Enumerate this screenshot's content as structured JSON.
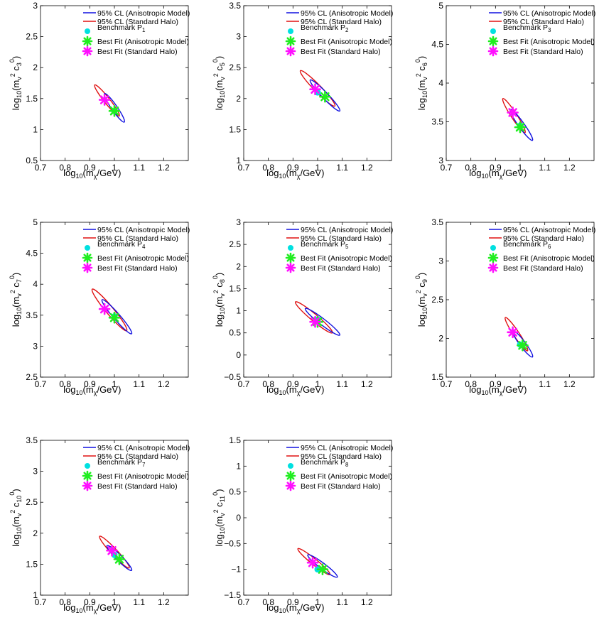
{
  "legend_labels": {
    "aniso_cl": "95% CL (Anisotropic Model)",
    "std_cl": "95% CL (Standard Halo)",
    "best_aniso": "Best Fit (Anisotropic Model)",
    "best_std": "Best Fit (Standard Halo)"
  },
  "colors": {
    "aniso": "#1010e0",
    "standard": "#e01010",
    "benchmark": "#00e0e0",
    "best_aniso": "#20ee20",
    "best_std": "#ff10ff"
  },
  "chart_data": [
    {
      "type": "scatter",
      "benchmark_sub": "1",
      "xlabel": {
        "main": "log",
        "sub1": "10",
        "mid": "(m",
        "sub2": "χ",
        "end": "/GeV)"
      },
      "ylabel": {
        "main": "log",
        "sub1": "10",
        "mid": "(m",
        "sub2": "v",
        "sup2": "2",
        "c": " c",
        "csub": "3",
        "csup": "0",
        "end": ")"
      },
      "xlim": [
        0.7,
        1.3
      ],
      "ylim": [
        0.5,
        3
      ],
      "xticks": [
        "0.7",
        "0.8",
        "0.9",
        "1",
        "1.1",
        "1.2"
      ],
      "yticks": [
        "0.5",
        "1",
        "1.5",
        "2",
        "2.5",
        "3"
      ],
      "benchmark": [
        1.0,
        1.3
      ],
      "best_fit_aniso": [
        1.0,
        1.3
      ],
      "best_fit_standard": [
        0.96,
        1.48
      ],
      "ellipse_aniso": {
        "x": [
          0.96,
          1.04
        ],
        "y": [
          1.12,
          1.58
        ]
      },
      "ellipse_standard": {
        "x": [
          0.92,
          1.02
        ],
        "y": [
          1.22,
          1.72
        ]
      }
    },
    {
      "type": "scatter",
      "benchmark_sub": "2",
      "xlabel": {
        "main": "log",
        "sub1": "10",
        "mid": "(m",
        "sub2": "χ",
        "end": "/GeV)"
      },
      "ylabel": {
        "main": "log",
        "sub1": "10",
        "mid": "(m",
        "sub2": "v",
        "sup2": "2",
        "c": " c",
        "csub": "5",
        "csup": "0",
        "end": ")"
      },
      "xlim": [
        0.7,
        1.3
      ],
      "ylim": [
        1,
        3.5
      ],
      "xticks": [
        "0.7",
        "0.8",
        "0.9",
        "1",
        "1.1",
        "1.2"
      ],
      "yticks": [
        "1",
        "1.5",
        "2",
        "2.5",
        "3",
        "3.5"
      ],
      "benchmark": [
        1.0,
        2.1
      ],
      "best_fit_aniso": [
        1.03,
        2.03
      ],
      "best_fit_standard": [
        0.99,
        2.15
      ],
      "ellipse_aniso": {
        "x": [
          0.97,
          1.09
        ],
        "y": [
          1.8,
          2.3
        ]
      },
      "ellipse_standard": {
        "x": [
          0.93,
          1.07
        ],
        "y": [
          1.88,
          2.45
        ]
      }
    },
    {
      "type": "scatter",
      "benchmark_sub": "3",
      "xlabel": {
        "main": "log",
        "sub1": "10",
        "mid": "(m",
        "sub2": "χ",
        "end": "/GeV)"
      },
      "ylabel": {
        "main": "log",
        "sub1": "10",
        "mid": "(m",
        "sub2": "v",
        "sup2": "2",
        "c": " c",
        "csub": "6",
        "csup": "0",
        "end": ")"
      },
      "xlim": [
        0.7,
        1.3
      ],
      "ylim": [
        3,
        5
      ],
      "xticks": [
        "0.7",
        "0.8",
        "0.9",
        "1",
        "1.1",
        "1.2"
      ],
      "yticks": [
        "3",
        "3.5",
        "4",
        "4.5",
        "5"
      ],
      "benchmark": [
        1.0,
        3.45
      ],
      "best_fit_aniso": [
        1.0,
        3.43
      ],
      "best_fit_standard": [
        0.97,
        3.62
      ],
      "ellipse_aniso": {
        "x": [
          0.96,
          1.05
        ],
        "y": [
          3.26,
          3.66
        ]
      },
      "ellipse_standard": {
        "x": [
          0.93,
          1.02
        ],
        "y": [
          3.36,
          3.8
        ]
      }
    },
    {
      "type": "scatter",
      "benchmark_sub": "4",
      "xlabel": {
        "main": "log",
        "sub1": "10",
        "mid": "(m",
        "sub2": "χ",
        "end": "/GeV)"
      },
      "ylabel": {
        "main": "log",
        "sub1": "10",
        "mid": "(m",
        "sub2": "v",
        "sup2": "2",
        "c": " c",
        "csub": "7",
        "csup": "0",
        "end": ")"
      },
      "xlim": [
        0.7,
        1.3
      ],
      "ylim": [
        2.5,
        5
      ],
      "xticks": [
        "0.7",
        "0.8",
        "0.9",
        "1",
        "1.1",
        "1.2"
      ],
      "yticks": [
        "2.5",
        "3",
        "3.5",
        "4",
        "4.5",
        "5"
      ],
      "benchmark": [
        1.0,
        3.48
      ],
      "best_fit_aniso": [
        1.0,
        3.46
      ],
      "best_fit_standard": [
        0.96,
        3.6
      ],
      "ellipse_aniso": {
        "x": [
          0.95,
          1.07
        ],
        "y": [
          3.2,
          3.75
        ]
      },
      "ellipse_standard": {
        "x": [
          0.91,
          1.05
        ],
        "y": [
          3.25,
          3.92
        ]
      }
    },
    {
      "type": "scatter",
      "benchmark_sub": "5",
      "xlabel": {
        "main": "log",
        "sub1": "10",
        "mid": "(m",
        "sub2": "χ",
        "end": "/GeV)"
      },
      "ylabel": {
        "main": "log",
        "sub1": "10",
        "mid": "(m",
        "sub2": "v",
        "sup2": "2",
        "c": " c",
        "csub": "8",
        "csup": "0",
        "end": ")"
      },
      "xlim": [
        0.7,
        1.3
      ],
      "ylim": [
        -0.5,
        3
      ],
      "xticks": [
        "0.7",
        "0.8",
        "0.9",
        "1",
        "1.1",
        "1.2"
      ],
      "yticks": [
        "−0.5",
        "0",
        "0.5",
        "1",
        "1.5",
        "2",
        "2.5",
        "3"
      ],
      "benchmark": [
        1.0,
        0.8
      ],
      "best_fit_aniso": [
        1.0,
        0.75
      ],
      "best_fit_standard": [
        0.99,
        0.75
      ],
      "ellipse_aniso": {
        "x": [
          0.95,
          1.09
        ],
        "y": [
          0.45,
          1.05
        ]
      },
      "ellipse_standard": {
        "x": [
          0.91,
          1.06
        ],
        "y": [
          0.5,
          1.2
        ]
      }
    },
    {
      "type": "scatter",
      "benchmark_sub": "6",
      "xlabel": {
        "main": "log",
        "sub1": "10",
        "mid": "(m",
        "sub2": "χ",
        "end": "/GeV)"
      },
      "ylabel": {
        "main": "log",
        "sub1": "10",
        "mid": "(m",
        "sub2": "v",
        "sup2": "2",
        "c": " c",
        "csub": "9",
        "csup": "0",
        "end": ")"
      },
      "xlim": [
        0.7,
        1.3
      ],
      "ylim": [
        1.5,
        3.5
      ],
      "xticks": [
        "0.7",
        "0.8",
        "0.9",
        "1",
        "1.1",
        "1.2"
      ],
      "yticks": [
        "1.5",
        "2",
        "2.5",
        "3",
        "3.5"
      ],
      "benchmark": [
        1.0,
        1.92
      ],
      "best_fit_aniso": [
        1.01,
        1.91
      ],
      "best_fit_standard": [
        0.97,
        2.08
      ],
      "ellipse_aniso": {
        "x": [
          0.97,
          1.05
        ],
        "y": [
          1.76,
          2.1
        ]
      },
      "ellipse_standard": {
        "x": [
          0.94,
          1.03
        ],
        "y": [
          1.84,
          2.27
        ]
      }
    },
    {
      "type": "scatter",
      "benchmark_sub": "7",
      "xlabel": {
        "main": "log",
        "sub1": "10",
        "mid": "(m",
        "sub2": "χ",
        "end": "/GeV)"
      },
      "ylabel": {
        "main": "log",
        "sub1": "10",
        "mid": "(m",
        "sub2": "v",
        "sup2": "2",
        "c": " c",
        "csub": "10",
        "csup": "0",
        "end": ")"
      },
      "xlim": [
        0.7,
        1.3
      ],
      "ylim": [
        1,
        3.5
      ],
      "xticks": [
        "0.7",
        "0.8",
        "0.9",
        "1",
        "1.1",
        "1.2"
      ],
      "yticks": [
        "1",
        "1.5",
        "2",
        "2.5",
        "3",
        "3.5"
      ],
      "benchmark": [
        1.0,
        1.65
      ],
      "best_fit_aniso": [
        1.02,
        1.58
      ],
      "best_fit_standard": [
        0.99,
        1.72
      ],
      "ellipse_aniso": {
        "x": [
          0.97,
          1.07
        ],
        "y": [
          1.4,
          1.8
        ]
      },
      "ellipse_standard": {
        "x": [
          0.94,
          1.06
        ],
        "y": [
          1.44,
          1.95
        ]
      }
    },
    {
      "type": "scatter",
      "benchmark_sub": "8",
      "xlabel": {
        "main": "log",
        "sub1": "10",
        "mid": "(m",
        "sub2": "χ",
        "end": "/GeV)"
      },
      "ylabel": {
        "main": "log",
        "sub1": "10",
        "mid": "(m",
        "sub2": "v",
        "sup2": "2",
        "c": " c",
        "csub": "11",
        "csup": "0",
        "end": ")"
      },
      "xlim": [
        0.7,
        1.3
      ],
      "ylim": [
        -1.5,
        1.5
      ],
      "xticks": [
        "0.7",
        "0.8",
        "0.9",
        "1",
        "1.1",
        "1.2"
      ],
      "yticks": [
        "−1.5",
        "−1",
        "−0.5",
        "0",
        "0.5",
        "1",
        "1.5"
      ],
      "benchmark": [
        1.0,
        -1.0
      ],
      "best_fit_aniso": [
        1.02,
        -1.0
      ],
      "best_fit_standard": [
        0.98,
        -0.87
      ],
      "ellipse_aniso": {
        "x": [
          0.96,
          1.08
        ],
        "y": [
          -1.15,
          -0.72
        ]
      },
      "ellipse_standard": {
        "x": [
          0.92,
          1.05
        ],
        "y": [
          -1.1,
          -0.6
        ]
      }
    }
  ]
}
